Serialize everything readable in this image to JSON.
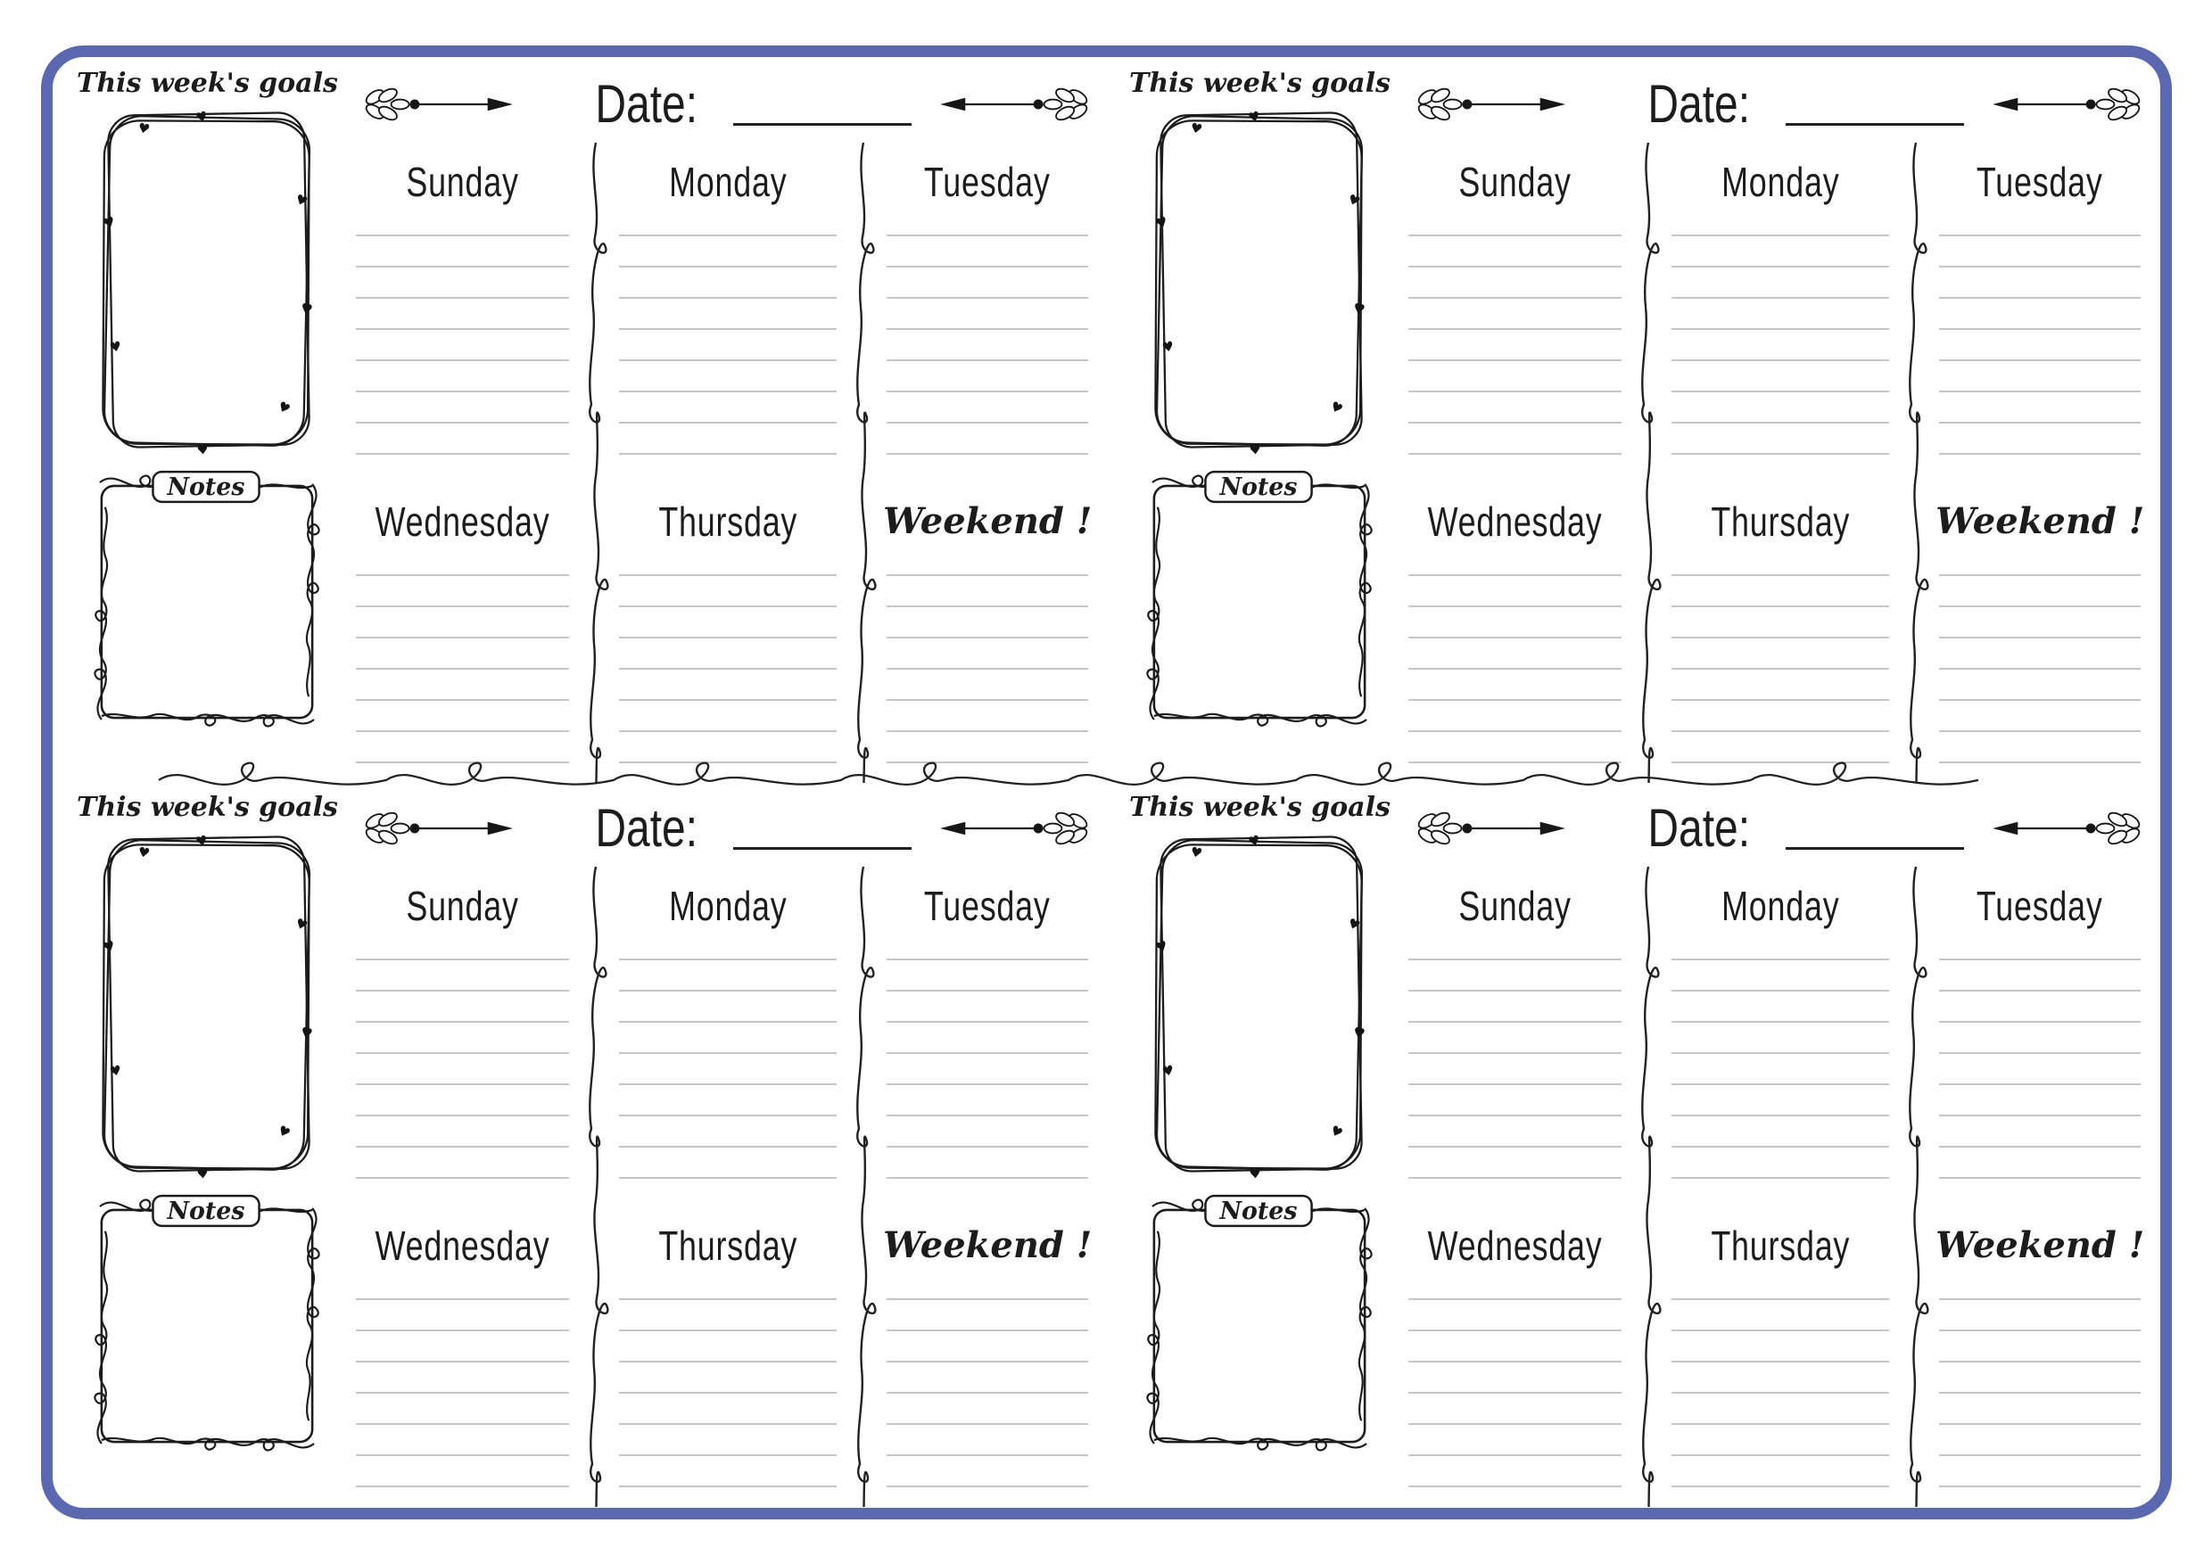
{
  "style": {
    "border_color": "#5a68af",
    "ink_color": "#1c1c1c",
    "rule_color": "#c6c6c6",
    "paper_color": "#ffffff"
  },
  "planner": {
    "goals_title": "This week's goals",
    "notes_label": "Notes",
    "date_label": "Date:",
    "date_value": "",
    "days_row1": [
      "Sunday",
      "Monday",
      "Tuesday"
    ],
    "days_row2": [
      "Wednesday",
      "Thursday",
      "Weekend !"
    ],
    "ruled_lines_per_day": 8,
    "quadrant_count": 4
  }
}
